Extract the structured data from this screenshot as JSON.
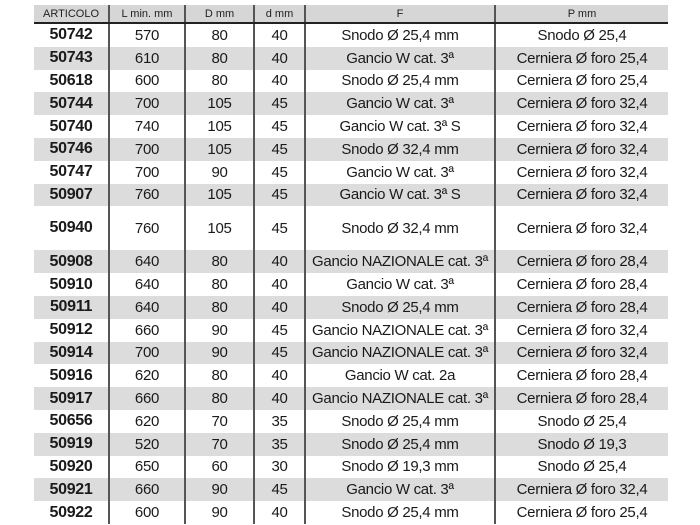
{
  "headers": [
    "ARTICOLO",
    "L min. mm",
    "D mm",
    "d mm",
    "F",
    "P mm"
  ],
  "rows": [
    [
      "50742",
      "570",
      "80",
      "40",
      "Snodo Ø 25,4 mm",
      "Snodo Ø 25,4"
    ],
    [
      "50743",
      "610",
      "80",
      "40",
      "Gancio W cat. 3ª",
      "Cerniera Ø foro 25,4"
    ],
    [
      "50618",
      "600",
      "80",
      "40",
      "Snodo Ø 25,4 mm",
      "Cerniera Ø foro 25,4"
    ],
    [
      "50744",
      "700",
      "105",
      "45",
      "Gancio W cat. 3ª",
      "Cerniera Ø foro 32,4"
    ],
    [
      "50740",
      "740",
      "105",
      "45",
      "Gancio W cat. 3ª S",
      "Cerniera Ø foro 32,4"
    ],
    [
      "50746",
      "700",
      "105",
      "45",
      "Snodo Ø 32,4 mm",
      "Cerniera Ø foro 32,4"
    ],
    [
      "50747",
      "700",
      "90",
      "45",
      "Gancio W cat. 3ª",
      "Cerniera Ø foro 32,4"
    ],
    [
      "50907",
      "760",
      "105",
      "45",
      "Gancio W cat. 3ª S",
      "Cerniera Ø foro 32,4"
    ],
    [
      "50940",
      "760",
      "105",
      "45",
      "Snodo Ø 32,4 mm",
      "Cerniera Ø foro 32,4"
    ],
    [
      "50908",
      "640",
      "80",
      "40",
      "Gancio NAZIONALE cat. 3ª",
      "Cerniera Ø foro 28,4"
    ],
    [
      "50910",
      "640",
      "80",
      "40",
      "Gancio W cat. 3ª",
      "Cerniera Ø foro 28,4"
    ],
    [
      "50911",
      "640",
      "80",
      "40",
      "Snodo Ø 25,4 mm",
      "Cerniera Ø foro 28,4"
    ],
    [
      "50912",
      "660",
      "90",
      "45",
      "Gancio NAZIONALE cat. 3ª",
      "Cerniera Ø foro 32,4"
    ],
    [
      "50914",
      "700",
      "90",
      "45",
      "Gancio NAZIONALE cat. 3ª",
      "Cerniera Ø foro 32,4"
    ],
    [
      "50916",
      "620",
      "80",
      "40",
      "Gancio W cat. 2a",
      "Cerniera Ø foro 28,4"
    ],
    [
      "50917",
      "660",
      "80",
      "40",
      "Gancio NAZIONALE cat. 3ª",
      "Cerniera Ø foro 28,4"
    ],
    [
      "50656",
      "620",
      "70",
      "35",
      "Snodo Ø 25,4 mm",
      "Snodo Ø 25,4"
    ],
    [
      "50919",
      "520",
      "70",
      "35",
      "Snodo Ø 25,4 mm",
      "Snodo Ø 19,3"
    ],
    [
      "50920",
      "650",
      "60",
      "30",
      "Snodo Ø 19,3 mm",
      "Snodo Ø 25,4"
    ],
    [
      "50921",
      "660",
      "90",
      "45",
      "Gancio W cat. 3ª",
      "Cerniera Ø foro 32,4"
    ],
    [
      "50922",
      "600",
      "90",
      "40",
      "Snodo Ø 25,4 mm",
      "Cerniera Ø foro 25,4"
    ]
  ]
}
